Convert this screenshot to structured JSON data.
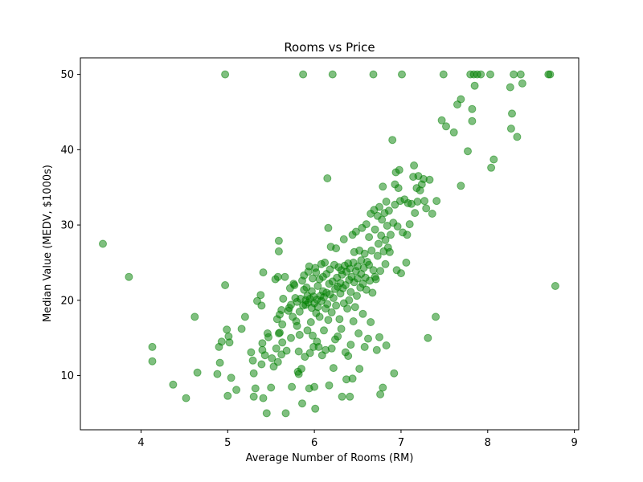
{
  "chart_data": {
    "type": "scatter",
    "title": "Rooms vs Price",
    "xlabel": "Average Number of Rooms (RM)",
    "ylabel": "Median Value (MEDV, $1000s)",
    "xlim": [
      3.3,
      9.05
    ],
    "ylim": [
      2.8,
      52.2
    ],
    "xticks": [
      4,
      5,
      6,
      7,
      8,
      9
    ],
    "yticks": [
      10,
      20,
      30,
      40,
      50
    ],
    "grid": false,
    "legend": "none",
    "marker_color": "#008000",
    "marker_alpha": 0.5,
    "points": [
      [
        3.56,
        27.5
      ],
      [
        3.86,
        23.1
      ],
      [
        4.13,
        13.8
      ],
      [
        4.13,
        11.9
      ],
      [
        4.37,
        8.8
      ],
      [
        4.52,
        7.0
      ],
      [
        4.62,
        17.8
      ],
      [
        4.65,
        10.4
      ],
      [
        4.88,
        10.2
      ],
      [
        4.9,
        13.8
      ],
      [
        4.91,
        11.7
      ],
      [
        4.93,
        14.5
      ],
      [
        4.97,
        50.0
      ],
      [
        4.97,
        22.0
      ],
      [
        4.99,
        16.1
      ],
      [
        5.0,
        7.3
      ],
      [
        5.01,
        15.2
      ],
      [
        5.02,
        14.4
      ],
      [
        5.04,
        9.7
      ],
      [
        5.1,
        8.1
      ],
      [
        5.16,
        16.2
      ],
      [
        5.2,
        17.8
      ],
      [
        5.27,
        13.1
      ],
      [
        5.29,
        12.0
      ],
      [
        5.3,
        7.2
      ],
      [
        5.3,
        10.3
      ],
      [
        5.32,
        8.3
      ],
      [
        5.34,
        19.9
      ],
      [
        5.38,
        20.7
      ],
      [
        5.39,
        19.3
      ],
      [
        5.39,
        11.5
      ],
      [
        5.4,
        14.3
      ],
      [
        5.4,
        13.4
      ],
      [
        5.41,
        23.7
      ],
      [
        5.41,
        7.0
      ],
      [
        5.43,
        12.7
      ],
      [
        5.45,
        5.0
      ],
      [
        5.46,
        15.6
      ],
      [
        5.47,
        15.1
      ],
      [
        5.5,
        8.4
      ],
      [
        5.51,
        12.3
      ],
      [
        5.53,
        11.2
      ],
      [
        5.55,
        22.8
      ],
      [
        5.56,
        13.6
      ],
      [
        5.57,
        17.5
      ],
      [
        5.58,
        11.8
      ],
      [
        5.58,
        23.1
      ],
      [
        5.59,
        15.6
      ],
      [
        5.59,
        27.9
      ],
      [
        5.59,
        26.5
      ],
      [
        5.6,
        18.1
      ],
      [
        5.6,
        15.7
      ],
      [
        5.62,
        18.7
      ],
      [
        5.62,
        12.8
      ],
      [
        5.63,
        14.4
      ],
      [
        5.63,
        16.8
      ],
      [
        5.64,
        20.2
      ],
      [
        5.66,
        23.1
      ],
      [
        5.67,
        5.0
      ],
      [
        5.68,
        13.3
      ],
      [
        5.7,
        18.6
      ],
      [
        5.71,
        19.0
      ],
      [
        5.72,
        21.6
      ],
      [
        5.73,
        19.4
      ],
      [
        5.73,
        15.0
      ],
      [
        5.74,
        8.5
      ],
      [
        5.75,
        17.8
      ],
      [
        5.76,
        22.2
      ],
      [
        5.77,
        22.0
      ],
      [
        5.78,
        20.3
      ],
      [
        5.79,
        17.2
      ],
      [
        5.8,
        16.6
      ],
      [
        5.8,
        19.8
      ],
      [
        5.81,
        10.5
      ],
      [
        5.82,
        10.2
      ],
      [
        5.82,
        13.2
      ],
      [
        5.83,
        15.4
      ],
      [
        5.83,
        18.5
      ],
      [
        5.84,
        20.2
      ],
      [
        5.85,
        10.9
      ],
      [
        5.86,
        22.6
      ],
      [
        5.86,
        6.3
      ],
      [
        5.87,
        50.0
      ],
      [
        5.87,
        19.3
      ],
      [
        5.88,
        21.4
      ],
      [
        5.88,
        23.3
      ],
      [
        5.89,
        12.5
      ],
      [
        5.9,
        20.0
      ],
      [
        5.9,
        19.4
      ],
      [
        5.91,
        21.7
      ],
      [
        5.92,
        20.6
      ],
      [
        5.92,
        16.0
      ],
      [
        5.93,
        19.7
      ],
      [
        5.93,
        23.8
      ],
      [
        5.94,
        8.3
      ],
      [
        5.94,
        24.5
      ],
      [
        5.95,
        13.0
      ],
      [
        5.95,
        20.2
      ],
      [
        5.96,
        17.1
      ],
      [
        5.97,
        19.0
      ],
      [
        5.97,
        21.2
      ],
      [
        5.98,
        15.3
      ],
      [
        5.98,
        22.9
      ],
      [
        5.99,
        13.8
      ],
      [
        5.99,
        20.5
      ],
      [
        6.0,
        8.5
      ],
      [
        6.0,
        19.6
      ],
      [
        6.01,
        5.6
      ],
      [
        6.01,
        24.3
      ],
      [
        6.02,
        18.3
      ],
      [
        6.02,
        23.7
      ],
      [
        6.03,
        20.1
      ],
      [
        6.03,
        14.5
      ],
      [
        6.04,
        21.9
      ],
      [
        6.04,
        19.1
      ],
      [
        6.05,
        13.8
      ],
      [
        6.06,
        17.8
      ],
      [
        6.06,
        22.8
      ],
      [
        6.07,
        20.6
      ],
      [
        6.08,
        24.8
      ],
      [
        6.08,
        19.9
      ],
      [
        6.09,
        12.7
      ],
      [
        6.1,
        21.2
      ],
      [
        6.1,
        23.1
      ],
      [
        6.11,
        16.0
      ],
      [
        6.11,
        20.4
      ],
      [
        6.12,
        25.0
      ],
      [
        6.13,
        18.9
      ],
      [
        6.13,
        13.4
      ],
      [
        6.14,
        23.5
      ],
      [
        6.14,
        21.0
      ],
      [
        6.15,
        36.2
      ],
      [
        6.15,
        19.5
      ],
      [
        6.16,
        17.4
      ],
      [
        6.16,
        29.6
      ],
      [
        6.17,
        22.2
      ],
      [
        6.17,
        8.7
      ],
      [
        6.18,
        20.8
      ],
      [
        6.18,
        24.1
      ],
      [
        6.19,
        27.1
      ],
      [
        6.2,
        13.6
      ],
      [
        6.2,
        18.4
      ],
      [
        6.21,
        50.0
      ],
      [
        6.21,
        22.5
      ],
      [
        6.22,
        20.3
      ],
      [
        6.22,
        11.0
      ],
      [
        6.23,
        24.7
      ],
      [
        6.24,
        21.5
      ],
      [
        6.24,
        14.8
      ],
      [
        6.25,
        26.9
      ],
      [
        6.25,
        19.3
      ],
      [
        6.26,
        23.0
      ],
      [
        6.27,
        15.2
      ],
      [
        6.27,
        21.8
      ],
      [
        6.28,
        24.4
      ],
      [
        6.29,
        17.5
      ],
      [
        6.3,
        22.3
      ],
      [
        6.3,
        20.9
      ],
      [
        6.31,
        24.0
      ],
      [
        6.31,
        16.2
      ],
      [
        6.32,
        7.2
      ],
      [
        6.32,
        23.4
      ],
      [
        6.33,
        21.6
      ],
      [
        6.34,
        28.1
      ],
      [
        6.34,
        19.6
      ],
      [
        6.35,
        24.6
      ],
      [
        6.36,
        13.1
      ],
      [
        6.36,
        22.0
      ],
      [
        6.37,
        9.5
      ],
      [
        6.37,
        23.8
      ],
      [
        6.38,
        18.9
      ],
      [
        6.39,
        24.9
      ],
      [
        6.39,
        12.6
      ],
      [
        6.4,
        22.7
      ],
      [
        6.4,
        20.0
      ],
      [
        6.41,
        7.2
      ],
      [
        6.41,
        24.2
      ],
      [
        6.42,
        14.1
      ],
      [
        6.42,
        21.1
      ],
      [
        6.43,
        23.1
      ],
      [
        6.44,
        28.7
      ],
      [
        6.44,
        9.6
      ],
      [
        6.45,
        25.0
      ],
      [
        6.45,
        17.2
      ],
      [
        6.46,
        22.4
      ],
      [
        6.46,
        26.4
      ],
      [
        6.47,
        19.1
      ],
      [
        6.48,
        23.9
      ],
      [
        6.48,
        29.1
      ],
      [
        6.49,
        20.6
      ],
      [
        6.5,
        24.5
      ],
      [
        6.5,
        22.9
      ],
      [
        6.51,
        15.6
      ],
      [
        6.52,
        10.9
      ],
      [
        6.52,
        26.6
      ],
      [
        6.53,
        21.7
      ],
      [
        6.54,
        25.3
      ],
      [
        6.54,
        23.5
      ],
      [
        6.55,
        29.6
      ],
      [
        6.56,
        22.2
      ],
      [
        6.56,
        18.2
      ],
      [
        6.57,
        24.3
      ],
      [
        6.58,
        13.8
      ],
      [
        6.58,
        26.2
      ],
      [
        6.59,
        23.0
      ],
      [
        6.6,
        30.1
      ],
      [
        6.6,
        21.4
      ],
      [
        6.61,
        25.1
      ],
      [
        6.62,
        14.9
      ],
      [
        6.63,
        24.7
      ],
      [
        6.63,
        28.4
      ],
      [
        6.64,
        22.6
      ],
      [
        6.65,
        31.5
      ],
      [
        6.65,
        17.1
      ],
      [
        6.66,
        26.6
      ],
      [
        6.67,
        21.0
      ],
      [
        6.68,
        50.0
      ],
      [
        6.68,
        24.0
      ],
      [
        6.69,
        32.0
      ],
      [
        6.7,
        23.1
      ],
      [
        6.7,
        29.4
      ],
      [
        6.71,
        22.8
      ],
      [
        6.72,
        13.4
      ],
      [
        6.73,
        25.9
      ],
      [
        6.73,
        31.2
      ],
      [
        6.74,
        27.5
      ],
      [
        6.75,
        32.4
      ],
      [
        6.75,
        15.1
      ],
      [
        6.76,
        7.5
      ],
      [
        6.76,
        23.9
      ],
      [
        6.77,
        28.6
      ],
      [
        6.78,
        30.7
      ],
      [
        6.79,
        35.1
      ],
      [
        6.79,
        8.4
      ],
      [
        6.8,
        26.5
      ],
      [
        6.81,
        31.6
      ],
      [
        6.82,
        28.0
      ],
      [
        6.82,
        24.8
      ],
      [
        6.83,
        33.1
      ],
      [
        6.83,
        14.0
      ],
      [
        6.84,
        29.9
      ],
      [
        6.85,
        27.0
      ],
      [
        6.86,
        31.9
      ],
      [
        6.87,
        26.4
      ],
      [
        6.88,
        28.7
      ],
      [
        6.9,
        41.3
      ],
      [
        6.91,
        30.3
      ],
      [
        6.92,
        10.3
      ],
      [
        6.93,
        32.7
      ],
      [
        6.93,
        35.4
      ],
      [
        6.94,
        37.0
      ],
      [
        6.95,
        24.0
      ],
      [
        6.96,
        29.8
      ],
      [
        6.97,
        34.9
      ],
      [
        6.98,
        37.3
      ],
      [
        6.99,
        33.2
      ],
      [
        7.0,
        23.6
      ],
      [
        7.01,
        50.0
      ],
      [
        7.02,
        29.0
      ],
      [
        7.04,
        33.4
      ],
      [
        7.06,
        25.0
      ],
      [
        7.07,
        28.7
      ],
      [
        7.08,
        32.9
      ],
      [
        7.1,
        30.1
      ],
      [
        7.12,
        32.8
      ],
      [
        7.14,
        36.4
      ],
      [
        7.15,
        37.9
      ],
      [
        7.16,
        31.6
      ],
      [
        7.18,
        34.9
      ],
      [
        7.19,
        33.1
      ],
      [
        7.2,
        36.5
      ],
      [
        7.22,
        34.6
      ],
      [
        7.24,
        35.4
      ],
      [
        7.26,
        36.1
      ],
      [
        7.27,
        33.2
      ],
      [
        7.29,
        32.2
      ],
      [
        7.31,
        15.0
      ],
      [
        7.33,
        36.0
      ],
      [
        7.36,
        31.5
      ],
      [
        7.4,
        17.8
      ],
      [
        7.41,
        33.2
      ],
      [
        7.47,
        43.9
      ],
      [
        7.49,
        50.0
      ],
      [
        7.52,
        43.1
      ],
      [
        7.61,
        42.3
      ],
      [
        7.65,
        46.0
      ],
      [
        7.69,
        35.2
      ],
      [
        7.69,
        46.7
      ],
      [
        7.77,
        39.8
      ],
      [
        7.8,
        50.0
      ],
      [
        7.82,
        43.8
      ],
      [
        7.82,
        45.4
      ],
      [
        7.84,
        50.0
      ],
      [
        7.85,
        48.5
      ],
      [
        7.88,
        50.0
      ],
      [
        7.92,
        50.0
      ],
      [
        8.03,
        50.0
      ],
      [
        8.04,
        37.6
      ],
      [
        8.07,
        38.7
      ],
      [
        8.26,
        48.3
      ],
      [
        8.27,
        42.8
      ],
      [
        8.28,
        44.8
      ],
      [
        8.3,
        50.0
      ],
      [
        8.34,
        41.7
      ],
      [
        8.38,
        50.0
      ],
      [
        8.4,
        48.8
      ],
      [
        8.7,
        50.0
      ],
      [
        8.72,
        50.0
      ],
      [
        8.78,
        21.9
      ]
    ]
  }
}
